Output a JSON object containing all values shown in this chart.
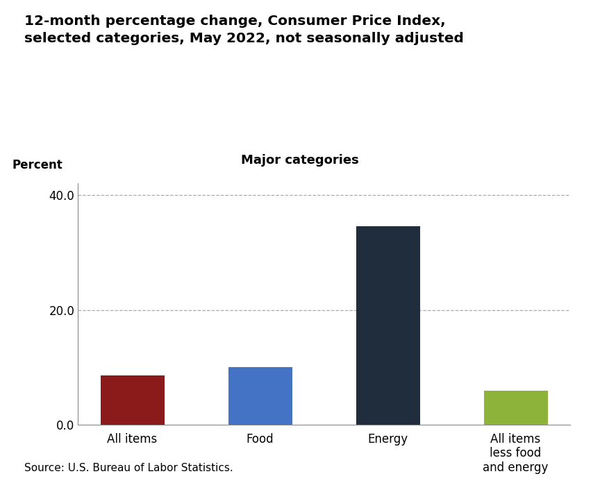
{
  "title": "12-month percentage change, Consumer Price Index,\nselected categories, May 2022, not seasonally adjusted",
  "subtitle": "Major categories",
  "ylabel": "Percent",
  "source": "Source: U.S. Bureau of Labor Statistics.",
  "categories": [
    "All items",
    "Food",
    "Energy",
    "All items\nless food\nand energy"
  ],
  "values": [
    8.6,
    10.1,
    34.6,
    6.0
  ],
  "bar_colors": [
    "#8B1A1A",
    "#4472C4",
    "#1F2D3D",
    "#8DB33A"
  ],
  "ylim": [
    0,
    42
  ],
  "yticks": [
    0.0,
    20.0,
    40.0
  ],
  "grid_color": "#AAAAAA",
  "background_color": "#FFFFFF",
  "title_fontsize": 14.5,
  "subtitle_fontsize": 13,
  "axis_label_fontsize": 12,
  "tick_fontsize": 12,
  "source_fontsize": 11
}
